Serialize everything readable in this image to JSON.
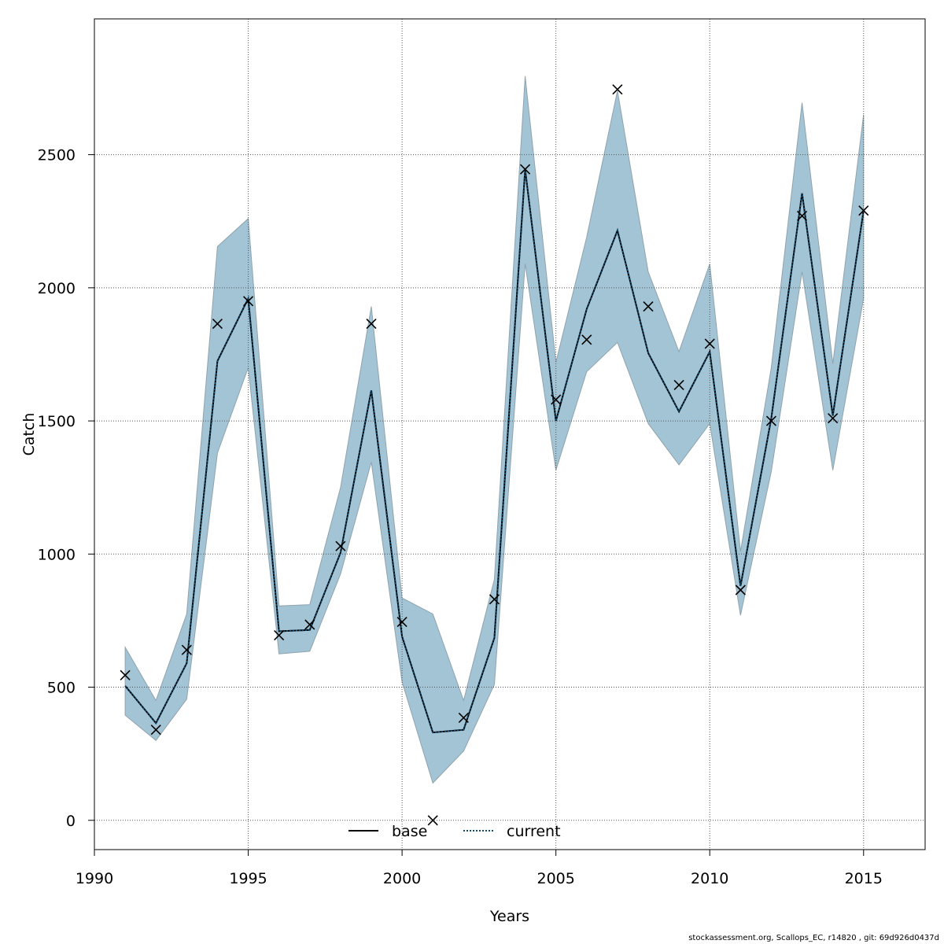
{
  "footer_text": "stockassessment.org, Scallops_EC, r14820 , git: 69d926d0437d",
  "chart_data": {
    "type": "line",
    "title": "",
    "xlabel": "Years",
    "ylabel": "Catch",
    "xlim": [
      1990,
      2017
    ],
    "ylim": [
      -110,
      3010
    ],
    "x_ticks": [
      1990,
      1995,
      2000,
      2005,
      2010,
      2015
    ],
    "y_ticks": [
      0,
      500,
      1000,
      1500,
      2000,
      2500
    ],
    "grid": true,
    "legend_position": "bottom-center",
    "colors": {
      "band_fill": "#a3c4d5",
      "band_stroke": "#8fa3ae",
      "base": "#000000",
      "current": "#0d4a6e",
      "observed": "#000000",
      "grid": "#555555"
    },
    "legend": [
      {
        "label": "base",
        "style": "solid"
      },
      {
        "label": "current",
        "style": "dotted"
      }
    ],
    "x": [
      1991,
      1992,
      1993,
      1994,
      1995,
      1996,
      1997,
      1998,
      1999,
      2000,
      2001,
      2002,
      2003,
      2004,
      2005,
      2006,
      2007,
      2008,
      2009,
      2010,
      2011,
      2012,
      2013,
      2014,
      2015
    ],
    "series": [
      {
        "name": "base",
        "values": [
          505,
          365,
          590,
          1725,
          1960,
          710,
          715,
          1005,
          1615,
          690,
          330,
          340,
          685,
          2445,
          1500,
          1920,
          2215,
          1755,
          1535,
          1760,
          880,
          1510,
          2355,
          1520,
          2290
        ]
      },
      {
        "name": "current",
        "values": [
          505,
          365,
          590,
          1725,
          1960,
          710,
          715,
          1005,
          1615,
          690,
          330,
          340,
          685,
          2445,
          1500,
          1920,
          2215,
          1755,
          1535,
          1760,
          880,
          1510,
          2355,
          1520,
          2290
        ]
      }
    ],
    "interval": {
      "lower": [
        395,
        300,
        455,
        1380,
        1700,
        625,
        635,
        925,
        1345,
        520,
        140,
        260,
        510,
        2090,
        1315,
        1685,
        1795,
        1490,
        1335,
        1490,
        770,
        1310,
        2060,
        1315,
        1960
      ],
      "upper": [
        650,
        450,
        775,
        2155,
        2260,
        805,
        810,
        1250,
        1930,
        835,
        775,
        450,
        905,
        2795,
        1720,
        2190,
        2740,
        2060,
        1760,
        2090,
        1010,
        1700,
        2695,
        1715,
        2650
      ]
    },
    "observed": [
      545,
      340,
      640,
      1865,
      1950,
      695,
      735,
      1030,
      1865,
      745,
      0,
      385,
      830,
      2445,
      1580,
      1805,
      2745,
      1930,
      1635,
      1790,
      865,
      1500,
      2270,
      1510,
      2290
    ]
  }
}
